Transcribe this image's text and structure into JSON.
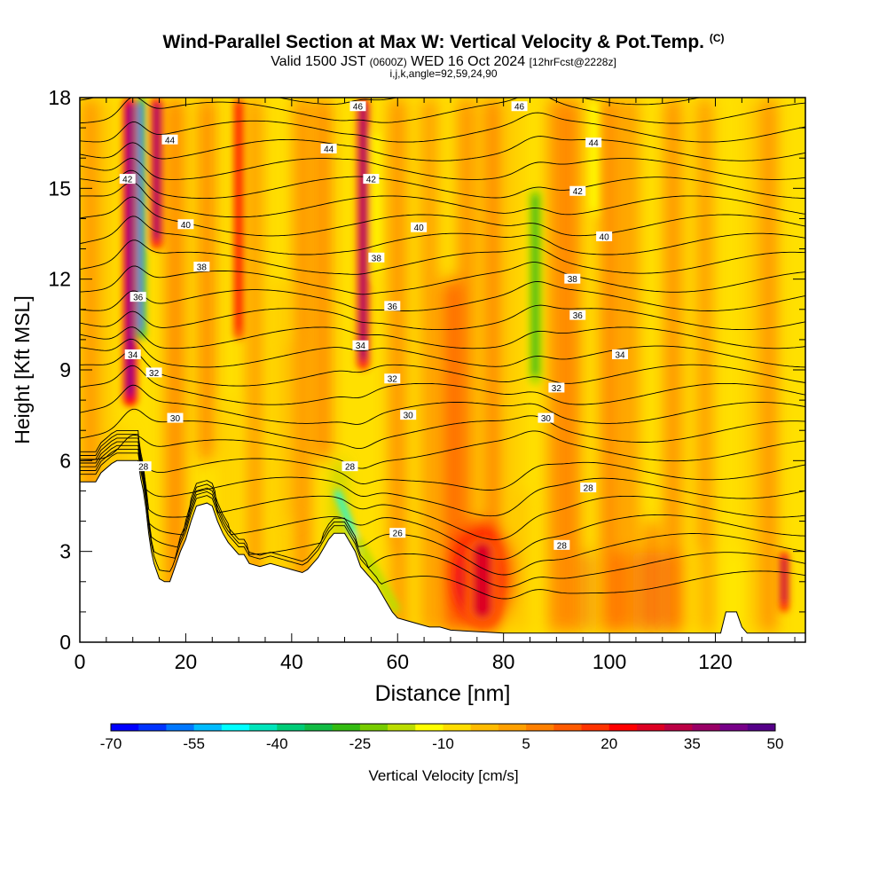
{
  "title": "Wind-Parallel Section at Max W: Vertical Velocity & Pot.Temp.",
  "title_mark": "(C)",
  "subtitle_main_a": "Valid 1500 JST",
  "subtitle_small_a": "(0600Z)",
  "subtitle_main_b": "WED 16 Oct 2024",
  "subtitle_small_b": "[12hrFcst@2228z]",
  "params": "i,j,k,angle=92,59,24,90",
  "chart_data": {
    "type": "heatmap",
    "xlabel": "Distance [nm]",
    "ylabel": "Height [Kft MSL]",
    "xlim": [
      0,
      137
    ],
    "ylim": [
      0,
      18
    ],
    "x_ticks": [
      "0",
      "20",
      "40",
      "60",
      "80",
      "100",
      "120"
    ],
    "y_ticks": [
      "0",
      "3",
      "6",
      "9",
      "12",
      "15",
      "18"
    ],
    "colorbar": {
      "label": "Vertical Velocity [cm/s]",
      "tick_labels": [
        "-70",
        "-55",
        "-40",
        "-25",
        "-10",
        "5",
        "20",
        "35",
        "50"
      ],
      "colors": [
        "#0000ff",
        "#0033ff",
        "#0077ff",
        "#00bbff",
        "#00ffff",
        "#00e5bb",
        "#00cc77",
        "#11bb44",
        "#33bb11",
        "#77cc00",
        "#bbdd00",
        "#ffff00",
        "#ffdd00",
        "#ffbb00",
        "#ffa000",
        "#ff8000",
        "#ff5a00",
        "#ff3300",
        "#ff0000",
        "#dd0022",
        "#bb0044",
        "#990066",
        "#770088",
        "#550088"
      ]
    },
    "contour_variable": "Pot.Temp.",
    "contour_levels": [
      26,
      28,
      30,
      32,
      34,
      36,
      38,
      40,
      42,
      44,
      46
    ],
    "contour_labels": [
      {
        "text": "46",
        "x": 52.5,
        "y": 17.7
      },
      {
        "text": "46",
        "x": 83,
        "y": 17.7
      },
      {
        "text": "44",
        "x": 17,
        "y": 16.6
      },
      {
        "text": "44",
        "x": 47,
        "y": 16.3
      },
      {
        "text": "44",
        "x": 97,
        "y": 16.5
      },
      {
        "text": "42",
        "x": 9,
        "y": 15.3
      },
      {
        "text": "42",
        "x": 55,
        "y": 15.3
      },
      {
        "text": "42",
        "x": 94,
        "y": 14.9
      },
      {
        "text": "40",
        "x": 20,
        "y": 13.8
      },
      {
        "text": "40",
        "x": 64,
        "y": 13.7
      },
      {
        "text": "40",
        "x": 99,
        "y": 13.4
      },
      {
        "text": "38",
        "x": 23,
        "y": 12.4
      },
      {
        "text": "38",
        "x": 56,
        "y": 12.7
      },
      {
        "text": "38",
        "x": 93,
        "y": 12.0
      },
      {
        "text": "36",
        "x": 11,
        "y": 11.4
      },
      {
        "text": "36",
        "x": 59,
        "y": 11.1
      },
      {
        "text": "36",
        "x": 94,
        "y": 10.8
      },
      {
        "text": "34",
        "x": 10,
        "y": 9.5
      },
      {
        "text": "34",
        "x": 53,
        "y": 9.8
      },
      {
        "text": "34",
        "x": 102,
        "y": 9.5
      },
      {
        "text": "32",
        "x": 14,
        "y": 8.9
      },
      {
        "text": "32",
        "x": 59,
        "y": 8.7
      },
      {
        "text": "32",
        "x": 90,
        "y": 8.4
      },
      {
        "text": "30",
        "x": 18,
        "y": 7.4
      },
      {
        "text": "30",
        "x": 62,
        "y": 7.5
      },
      {
        "text": "30",
        "x": 88,
        "y": 7.4
      },
      {
        "text": "28",
        "x": 12,
        "y": 5.8
      },
      {
        "text": "28",
        "x": 51,
        "y": 5.8
      },
      {
        "text": "28",
        "x": 96,
        "y": 5.1
      },
      {
        "text": "26",
        "x": 60,
        "y": 3.6
      },
      {
        "text": "28",
        "x": 91,
        "y": 3.2
      }
    ],
    "terrain_top": [
      [
        0,
        5.3
      ],
      [
        3,
        5.3
      ],
      [
        4,
        5.6
      ],
      [
        6,
        5.9
      ],
      [
        7,
        6.0
      ],
      [
        11,
        6.0
      ],
      [
        11.5,
        5.4
      ],
      [
        12,
        5.0
      ],
      [
        12.5,
        4.4
      ],
      [
        13,
        3.6
      ],
      [
        13.5,
        3.0
      ],
      [
        14,
        2.6
      ],
      [
        15,
        2.1
      ],
      [
        16,
        2.0
      ],
      [
        17,
        2.0
      ],
      [
        18,
        2.5
      ],
      [
        19,
        3.0
      ],
      [
        20,
        3.4
      ],
      [
        21,
        4.0
      ],
      [
        22,
        4.5
      ],
      [
        24,
        4.6
      ],
      [
        25,
        4.5
      ],
      [
        26,
        4.0
      ],
      [
        27,
        3.6
      ],
      [
        28,
        3.3
      ],
      [
        29,
        3.1
      ],
      [
        30,
        2.9
      ],
      [
        31,
        2.9
      ],
      [
        32,
        2.6
      ],
      [
        34,
        2.5
      ],
      [
        36,
        2.6
      ],
      [
        38,
        2.5
      ],
      [
        40,
        2.4
      ],
      [
        42,
        2.3
      ],
      [
        43,
        2.4
      ],
      [
        44,
        2.6
      ],
      [
        45,
        2.8
      ],
      [
        46,
        3.1
      ],
      [
        47,
        3.4
      ],
      [
        48,
        3.6
      ],
      [
        50,
        3.6
      ],
      [
        51,
        3.3
      ],
      [
        52,
        3.0
      ],
      [
        53,
        2.5
      ],
      [
        54,
        2.3
      ],
      [
        55,
        2.1
      ],
      [
        56,
        1.9
      ],
      [
        57,
        1.6
      ],
      [
        58,
        1.3
      ],
      [
        59,
        1.0
      ],
      [
        60,
        0.8
      ],
      [
        62,
        0.7
      ],
      [
        64,
        0.6
      ],
      [
        66,
        0.5
      ],
      [
        68,
        0.5
      ],
      [
        70,
        0.4
      ],
      [
        75,
        0.35
      ],
      [
        80,
        0.3
      ],
      [
        85,
        0.3
      ],
      [
        90,
        0.3
      ],
      [
        100,
        0.3
      ],
      [
        115,
        0.3
      ],
      [
        121,
        0.3
      ],
      [
        122,
        1.0
      ],
      [
        124,
        1.0
      ],
      [
        125,
        0.5
      ],
      [
        126,
        0.3
      ],
      [
        137,
        0.3
      ]
    ],
    "vertical_velocity_features": [
      {
        "x": 9.5,
        "y0": 7.8,
        "y1": 18,
        "w": 1.3,
        "v": 40
      },
      {
        "x": 11.5,
        "y0": 10,
        "y1": 18,
        "w": 0.8,
        "v": -60
      },
      {
        "x": 14.5,
        "y0": 13,
        "y1": 18,
        "w": 1.2,
        "v": 35
      },
      {
        "x": 30,
        "y0": 10,
        "y1": 18,
        "w": 1.0,
        "v": 20
      },
      {
        "x": 53.5,
        "y0": 9,
        "y1": 18,
        "w": 1.2,
        "v": 35
      },
      {
        "x": 56,
        "y0": 12,
        "y1": 17,
        "w": 0.8,
        "v": -15
      },
      {
        "x": 76,
        "y0": 0.5,
        "y1": 3.5,
        "w": 3.5,
        "v": 25
      },
      {
        "x": 86,
        "y0": 8.5,
        "y1": 15,
        "w": 1.3,
        "v": -30
      },
      {
        "x": 97,
        "y0": 14,
        "y1": 18,
        "w": 1.0,
        "v": -15
      },
      {
        "x": 133,
        "y0": 1.0,
        "y1": 3.0,
        "w": 0.9,
        "v": 30
      }
    ]
  }
}
